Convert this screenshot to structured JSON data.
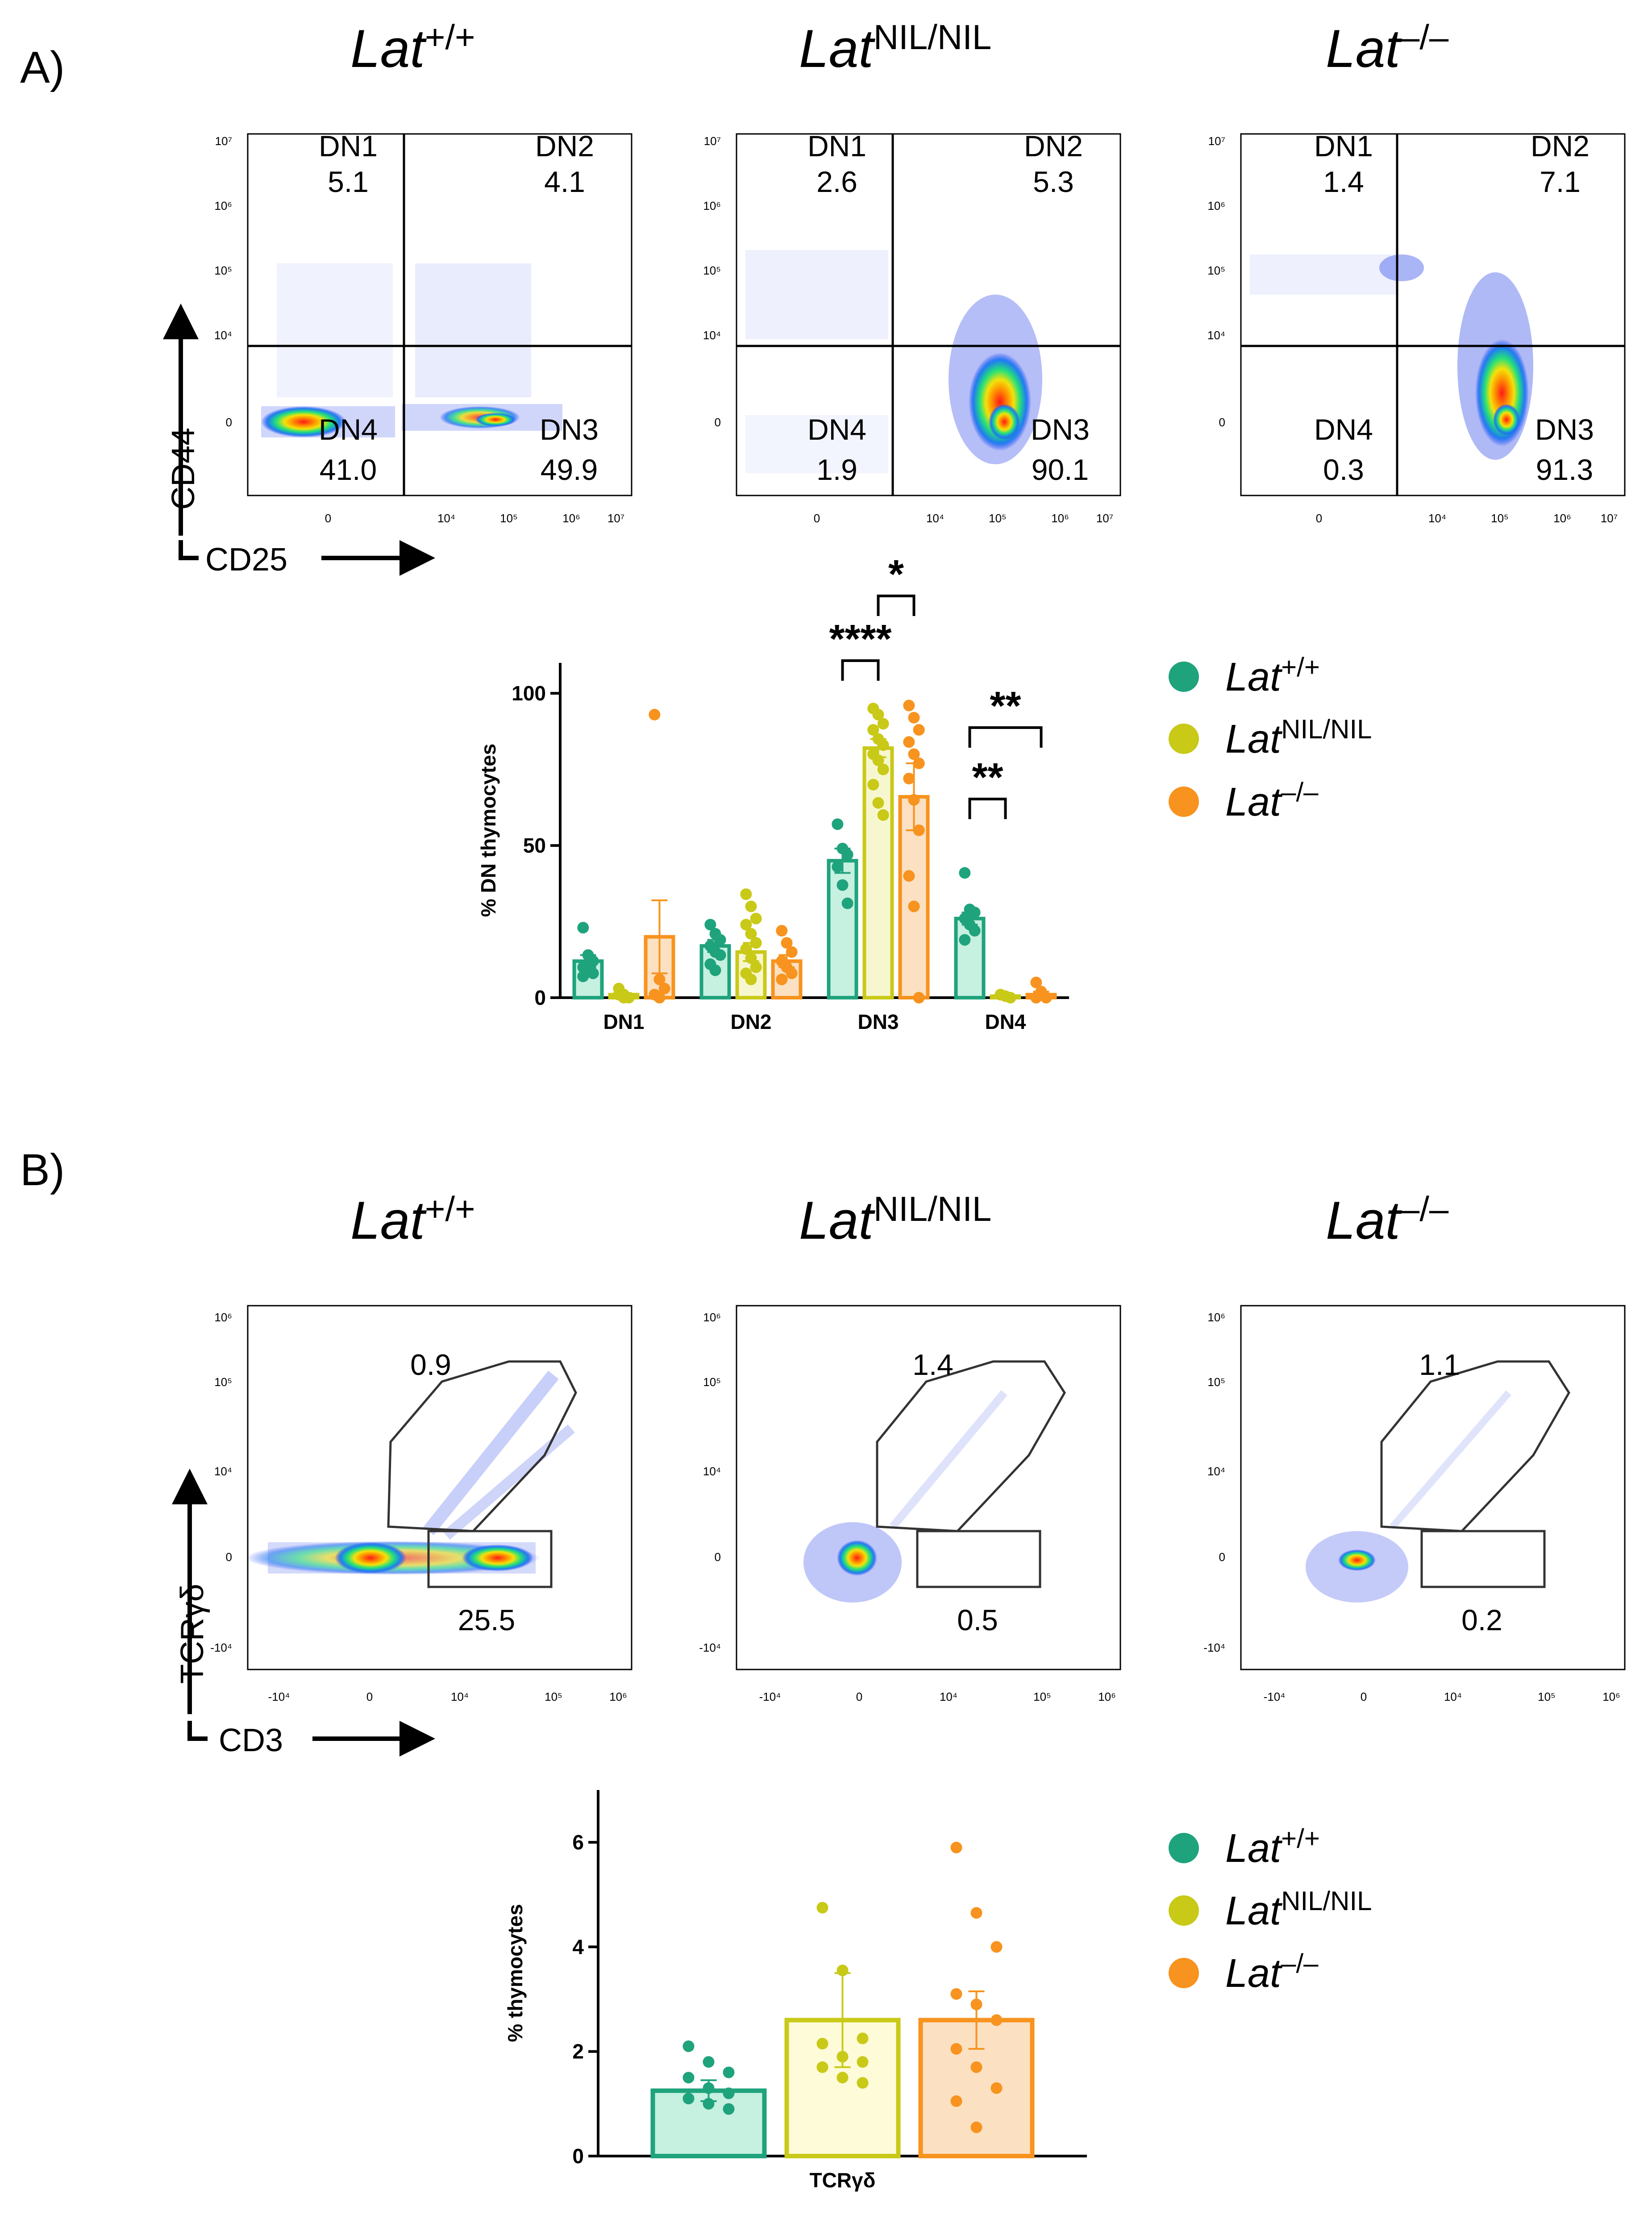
{
  "panels": {
    "A": {
      "letter": "A)",
      "genotypes": [
        {
          "base": "Lat",
          "sup": "+/+"
        },
        {
          "base": "Lat",
          "sup": "NIL/NIL"
        },
        {
          "base": "Lat",
          "sup": "–/–"
        }
      ],
      "y_axis": "CD44",
      "x_axis": "CD25",
      "y_ticks": [
        "10⁷",
        "10⁶",
        "10⁵",
        "10⁴",
        "0"
      ],
      "x_ticks": [
        "0",
        "10⁴",
        "10⁵",
        "10⁶",
        "10⁷"
      ],
      "quadrants": [
        {
          "dn1": {
            "name": "DN1",
            "value": "5.1"
          },
          "dn2": {
            "name": "DN2",
            "value": "4.1"
          },
          "dn3": {
            "name": "DN3",
            "value": "49.9"
          },
          "dn4": {
            "name": "DN4",
            "value": "41.0"
          }
        },
        {
          "dn1": {
            "name": "DN1",
            "value": "2.6"
          },
          "dn2": {
            "name": "DN2",
            "value": "5.3"
          },
          "dn3": {
            "name": "DN3",
            "value": "90.1"
          },
          "dn4": {
            "name": "DN4",
            "value": "1.9"
          }
        },
        {
          "dn1": {
            "name": "DN1",
            "value": "1.4"
          },
          "dn2": {
            "name": "DN2",
            "value": "7.1"
          },
          "dn3": {
            "name": "DN3",
            "value": "91.3"
          },
          "dn4": {
            "name": "DN4",
            "value": "0.3"
          }
        }
      ]
    },
    "B": {
      "letter": "B)",
      "genotypes": [
        {
          "base": "Lat",
          "sup": "+/+"
        },
        {
          "base": "Lat",
          "sup": "NIL/NIL"
        },
        {
          "base": "Lat",
          "sup": "–/–"
        }
      ],
      "y_axis": "TCRγδ",
      "x_axis": "CD3",
      "y_ticks": [
        "10⁶",
        "10⁵",
        "10⁴",
        "0",
        "-10⁴"
      ],
      "x_ticks": [
        "-10⁴",
        "0",
        "10⁴",
        "10⁵",
        "10⁶"
      ],
      "gates": [
        {
          "upper": "0.9",
          "lower": "25.5"
        },
        {
          "upper": "1.4",
          "lower": "0.5"
        },
        {
          "upper": "1.1",
          "lower": "0.2"
        }
      ]
    }
  },
  "legend": [
    {
      "base": "Lat",
      "sup": "+/+",
      "color": "#1fa37c"
    },
    {
      "base": "Lat",
      "sup": "NIL/NIL",
      "color": "#c9c918"
    },
    {
      "base": "Lat",
      "sup": "–/–",
      "color": "#f7931e"
    }
  ],
  "chart_data": [
    {
      "type": "bar",
      "title": "",
      "ylabel": "% DN thymocytes",
      "xlabel": "",
      "ylim": [
        0,
        110
      ],
      "yticks": [
        0,
        50,
        100
      ],
      "categories": [
        "DN1",
        "DN2",
        "DN3",
        "DN4"
      ],
      "series": [
        {
          "name": "Lat+/+",
          "color": "#1fa37c",
          "fill": "#c6f0e0",
          "values": [
            12,
            17,
            45,
            26
          ],
          "errors": [
            2,
            2,
            4,
            2
          ],
          "points": [
            [
              23,
              14,
              12,
              10,
              9,
              8,
              7
            ],
            [
              24,
              21,
              19,
              17,
              15,
              14,
              11,
              9
            ],
            [
              57,
              49,
              47,
              43,
              37,
              31
            ],
            [
              41,
              29,
              28,
              26,
              24,
              22,
              19
            ]
          ]
        },
        {
          "name": "LatNIL/NIL",
          "color": "#c9c918",
          "fill": "#f7f7cf",
          "values": [
            1,
            15,
            82,
            0.5
          ],
          "errors": [
            0.5,
            3,
            3,
            0.3
          ],
          "points": [
            [
              3,
              1,
              0,
              1,
              0
            ],
            [
              34,
              30,
              26,
              24,
              21,
              18,
              16,
              13,
              10,
              8,
              6
            ],
            [
              95,
              93,
              90,
              88,
              85,
              83,
              80,
              78,
              75,
              70,
              64,
              60
            ],
            [
              1,
              0.5,
              0
            ]
          ]
        },
        {
          "name": "Lat-/-",
          "color": "#f7931e",
          "fill": "#fce0c2",
          "values": [
            20,
            12,
            66,
            1
          ],
          "errors": [
            12,
            2,
            11,
            1
          ],
          "points": [
            [
              93,
              6,
              3,
              1,
              0
            ],
            [
              22,
              18,
              15,
              12,
              10,
              8,
              6
            ],
            [
              96,
              92,
              88,
              84,
              80,
              77,
              72,
              65,
              55,
              40,
              30,
              0
            ],
            [
              5,
              2,
              0,
              0
            ]
          ]
        }
      ],
      "significance": [
        {
          "label": "*",
          "category": "DN3",
          "between": [
            "LatNIL/NIL",
            "Lat-/-"
          ]
        },
        {
          "label": "****",
          "category": "DN3",
          "between": [
            "Lat+/+",
            "LatNIL/NIL"
          ]
        },
        {
          "label": "**",
          "category": "DN4",
          "between": [
            "Lat+/+",
            "Lat-/-"
          ]
        },
        {
          "label": "**",
          "category": "DN4",
          "between": [
            "Lat+/+",
            "LatNIL/NIL"
          ]
        }
      ]
    },
    {
      "type": "bar",
      "title": "",
      "ylabel": "% thymocytes",
      "xlabel": "",
      "ylim": [
        0,
        7
      ],
      "yticks": [
        0,
        2,
        4,
        6
      ],
      "categories": [
        "TCRγδ"
      ],
      "series": [
        {
          "name": "Lat+/+",
          "color": "#1fa37c",
          "fill": "#c6f0e0",
          "values": [
            1.25
          ],
          "errors": [
            0.2
          ],
          "points": [
            [
              2.1,
              1.8,
              1.6,
              1.5,
              1.3,
              1.2,
              1.1,
              1.0,
              0.9
            ]
          ]
        },
        {
          "name": "LatNIL/NIL",
          "color": "#c9c918",
          "fill": "#fdfbd8",
          "values": [
            2.6
          ],
          "errors": [
            0.9
          ],
          "points": [
            [
              4.75,
              3.55,
              2.25,
              2.15,
              1.9,
              1.8,
              1.7,
              1.5,
              1.4
            ]
          ]
        },
        {
          "name": "Lat-/-",
          "color": "#f7931e",
          "fill": "#fce0c2",
          "values": [
            2.6
          ],
          "errors": [
            0.55
          ],
          "points": [
            [
              5.9,
              4.65,
              4.0,
              3.1,
              2.9,
              2.6,
              2.05,
              1.7,
              1.3,
              1.05,
              0.55
            ]
          ]
        }
      ]
    }
  ]
}
